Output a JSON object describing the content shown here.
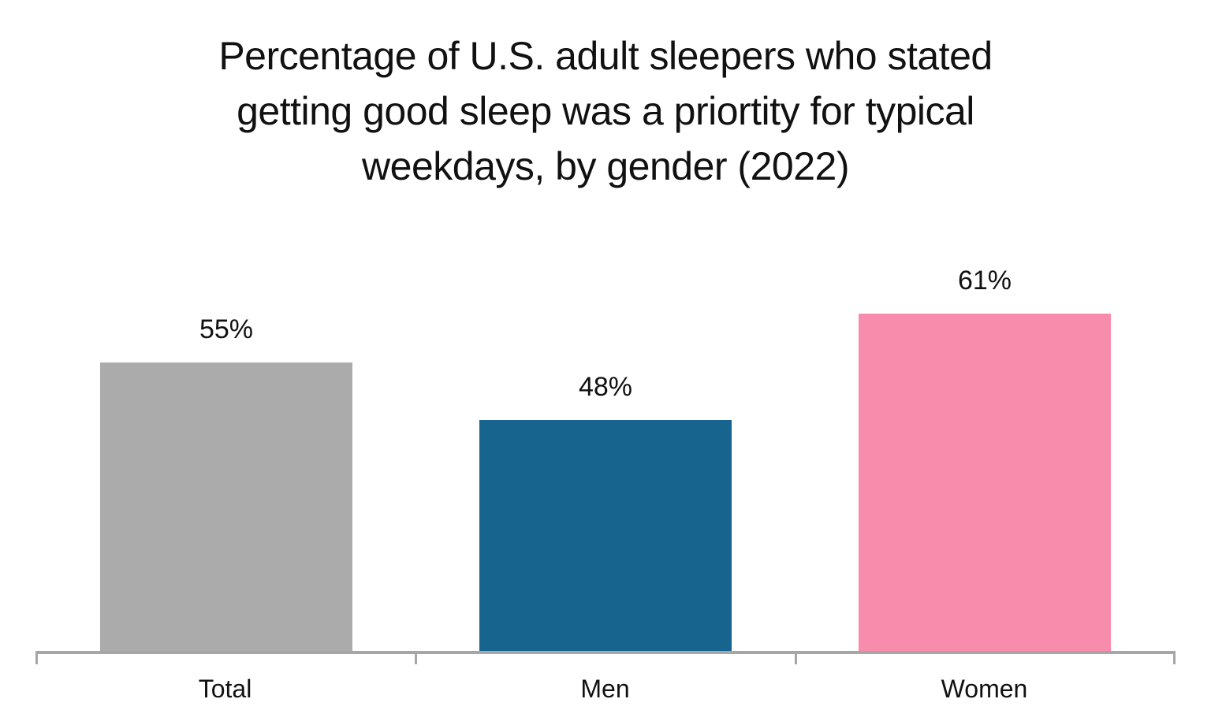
{
  "title_lines": [
    "Percentage of U.S. adult sleepers who stated",
    "getting good sleep was a priortity for typical",
    "weekdays, by gender (2022)"
  ],
  "chart_data": {
    "type": "bar",
    "title": "Percentage of U.S. adult sleepers who stated getting good sleep was a priortity for typical weekdays, by gender (2022)",
    "categories": [
      "Total",
      "Men",
      "Women"
    ],
    "values": [
      55,
      48,
      61
    ],
    "value_labels": [
      "55%",
      "48%",
      "61%"
    ],
    "unit": "%",
    "colors": [
      "#ababab",
      "#17658f",
      "#f78cad"
    ],
    "xlabel": "",
    "ylabel": "",
    "axis": {
      "x_axis_line_color": "#a6a6a6",
      "gridlines": false,
      "y_axis_tick_labels_visible": false,
      "data_labels": true,
      "visible_value_at_baseline": 20
    },
    "text_color": "#111111",
    "background_color": "#ffffff",
    "legend": "none"
  }
}
